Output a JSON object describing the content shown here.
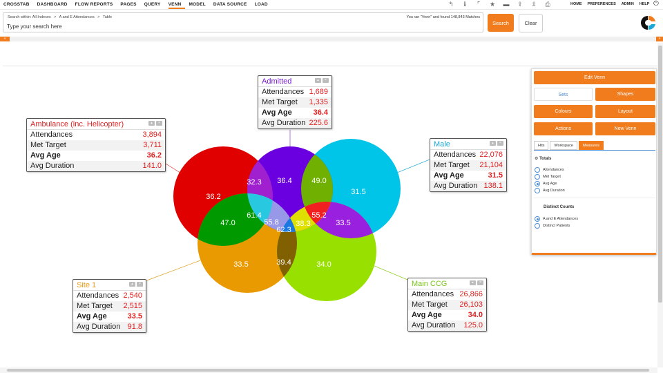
{
  "nav": {
    "items": [
      "CROSSTAB",
      "DASHBOARD",
      "FLOW REPORTS",
      "PAGES",
      "QUERY",
      "VENN",
      "MODEL",
      "DATA SOURCE",
      "LOAD"
    ],
    "active": "VENN",
    "right_links": [
      "HOME",
      "PREFERENCES",
      "ADMIN",
      "HELP"
    ]
  },
  "search": {
    "breadcrumb": [
      "Search within: All Indexes",
      ">",
      "A and E Attendances",
      ">",
      "Table"
    ],
    "found_text": "You ran \"Venn\" and found 148,843 Matches",
    "placeholder": "Type your search here",
    "search_label": "Search",
    "clear_label": "Clear"
  },
  "sets": [
    {
      "title": "Ambulance (inc. Helicopter)",
      "color": "#e00000",
      "title_color": "#e02020",
      "rows": [
        {
          "label": "Attendances",
          "value": "3,894"
        },
        {
          "label": "Met Target",
          "value": "3,711"
        },
        {
          "label": "Avg Age",
          "value": "36.2",
          "bold": true
        },
        {
          "label": "Avg Duration",
          "value": "141.0"
        }
      ]
    },
    {
      "title": "Admitted",
      "color": "#6a00e0",
      "title_color": "#7a20d0",
      "rows": [
        {
          "label": "Attendances",
          "value": "1,689"
        },
        {
          "label": "Met Target",
          "value": "1,335"
        },
        {
          "label": "Avg Age",
          "value": "36.4",
          "bold": true
        },
        {
          "label": "Avg Duration",
          "value": "225.6"
        }
      ]
    },
    {
      "title": "Male",
      "color": "#00c4e8",
      "title_color": "#1aa8d8",
      "rows": [
        {
          "label": "Attendances",
          "value": "22,076"
        },
        {
          "label": "Met Target",
          "value": "21,104"
        },
        {
          "label": "Avg Age",
          "value": "31.5",
          "bold": true
        },
        {
          "label": "Avg Duration",
          "value": "138.1"
        }
      ]
    },
    {
      "title": "Site 1",
      "color": "#e8a000",
      "title_color": "#e89a10",
      "rows": [
        {
          "label": "Attendances",
          "value": "2,540"
        },
        {
          "label": "Met Target",
          "value": "2,515"
        },
        {
          "label": "Avg Age",
          "value": "33.5",
          "bold": true
        },
        {
          "label": "Avg Duration",
          "value": "91.8"
        }
      ]
    },
    {
      "title": "Main CCG",
      "color": "#90e000",
      "title_color": "#7ac81a",
      "rows": [
        {
          "label": "Attendances",
          "value": "26,866"
        },
        {
          "label": "Met Target",
          "value": "26,103"
        },
        {
          "label": "Avg Age",
          "value": "34.0",
          "bold": true
        },
        {
          "label": "Avg Duration",
          "value": "125.0"
        }
      ]
    }
  ],
  "region_values": {
    "ambulance_only": "36.2",
    "amb_admitted": "32.3",
    "admitted_only": "36.4",
    "admitted_male": "49.0",
    "male_only": "31.5",
    "amb_site": "47.0",
    "amb_site_admitted": "61.4",
    "center_left": "55.8",
    "center": "62.3",
    "center_right": "38.3",
    "male_ccg_admitted": "55.2",
    "male_ccg": "33.5",
    "site_only": "33.5",
    "site_ccg": "39.4",
    "ccg_only": "34.0"
  },
  "panel": {
    "edit_label": "Edit Venn",
    "sets_label": "Sets",
    "shapes_label": "Shapes",
    "colours_label": "Colours",
    "layout_label": "Layout",
    "actions_label": "Actions",
    "new_label": "New Venn",
    "tabs": [
      "Hits",
      "Workspace",
      "Measures"
    ],
    "active_tab": "Measures",
    "totals_heading": "Totals",
    "totals_options": [
      "Attendances",
      "Met Target",
      "Avg Age",
      "Avg Duration"
    ],
    "totals_selected": "Avg Age",
    "distinct_heading": "Distinct Counts",
    "distinct_options": [
      "A and E Attendances",
      "Distinct Patients"
    ],
    "distinct_selected": "A and E Attendances"
  }
}
